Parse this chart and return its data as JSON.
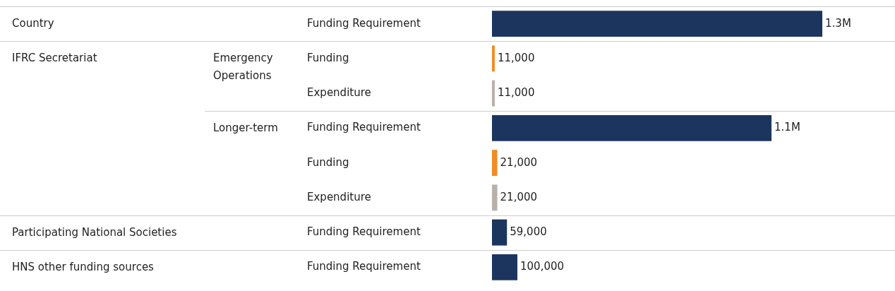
{
  "chart_data": {
    "type": "bar",
    "orientation": "horizontal",
    "categories": [
      "Funding Requirement",
      "Funding",
      "Expenditure",
      "Funding Requirement",
      "Funding",
      "Expenditure",
      "Funding Requirement",
      "Funding Requirement"
    ],
    "values": [
      1300000,
      11000,
      11000,
      1100000,
      21000,
      21000,
      59000,
      100000
    ],
    "colors": [
      "#1c355e",
      "#f28c28",
      "#b8b0ab",
      "#1c355e",
      "#f28c28",
      "#b8b0ab",
      "#1c355e",
      "#1c355e"
    ],
    "value_labels": [
      "1.3M",
      "11,000",
      "11,000",
      "1.1M",
      "21,000",
      "21,000",
      "59,000",
      "100,000"
    ],
    "annotations": [
      "Country",
      "IFRC Secretariat",
      "Emergency Operations",
      "Longer-term",
      "Participating National Societies",
      "HNS other funding sources"
    ]
  }
}
